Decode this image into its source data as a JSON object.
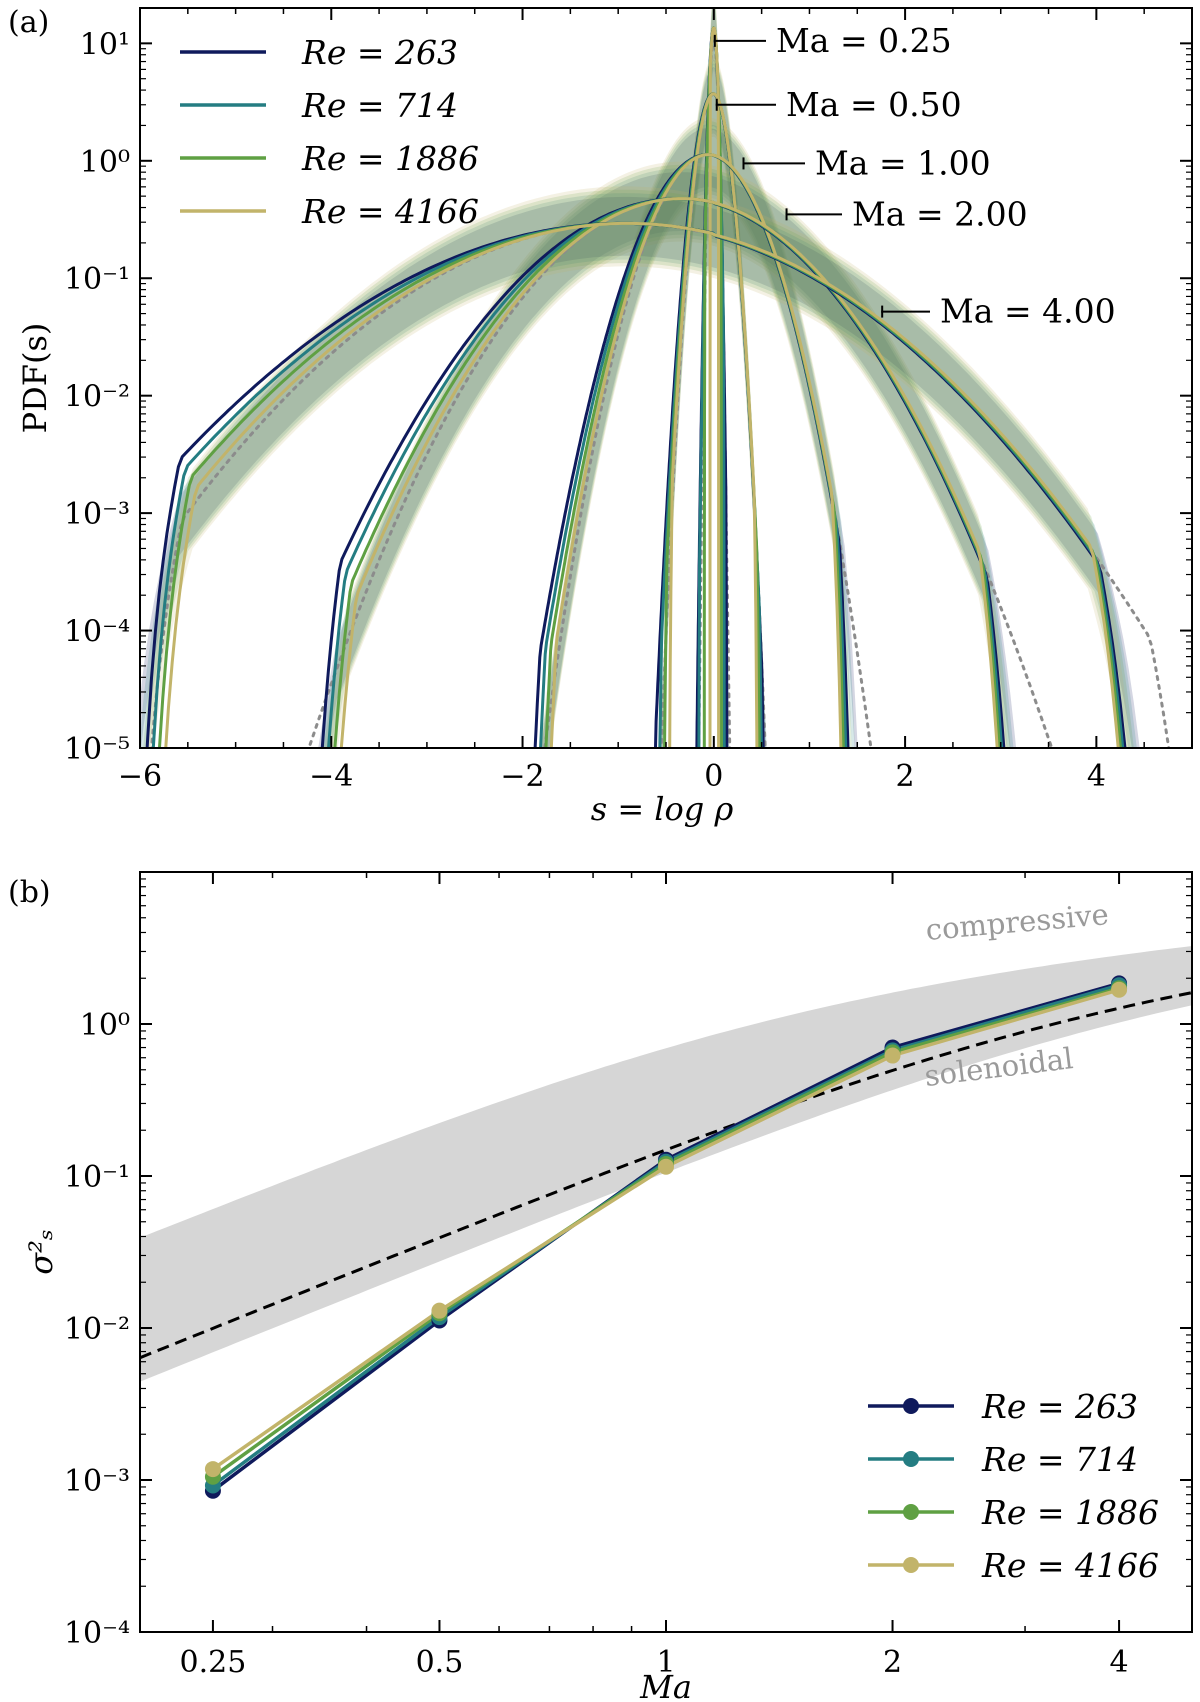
{
  "colors": {
    "re263": "#0f1a5c",
    "re714": "#247d82",
    "re1886": "#5fa043",
    "re4166": "#c2b46a",
    "model": "#8c8c8c",
    "band": "#d6d6d6",
    "dashed": "#000000"
  },
  "chart_data": [
    {
      "panel_label": "(a)",
      "type": "line",
      "xlabel": "s = log ρ",
      "ylabel": "PDF(s)",
      "xlim": [
        -6,
        5
      ],
      "ylim": [
        1e-05,
        20
      ],
      "y_scale": "log",
      "x_ticks": [
        "−6",
        "−4",
        "−2",
        "0",
        "2",
        "4"
      ],
      "y_ticks": [
        "10¹",
        "10⁰",
        "10⁻¹",
        "10⁻²",
        "10⁻³",
        "10⁻⁴",
        "10⁻⁵"
      ],
      "legend": {
        "position": "top-left",
        "entries": [
          "Re = 263",
          "Re = 714",
          "Re = 1886",
          "Re = 4166"
        ]
      },
      "annotations": [
        "Ma = 0.25",
        "Ma = 0.50",
        "Ma = 1.00",
        "Ma = 2.00",
        "Ma = 4.00"
      ],
      "groups": [
        {
          "Ma": 0.25,
          "sigma2": 0.00088,
          "peak": 13.8,
          "left_cut": -0.22,
          "right_cut": 0.14
        },
        {
          "Ma": 0.5,
          "sigma2": 0.0115,
          "peak": 3.8,
          "left_cut": -0.65,
          "right_cut": 0.55
        },
        {
          "Ma": 1.0,
          "sigma2": 0.125,
          "peak": 1.15,
          "left_cut": -1.95,
          "right_cut": 1.45
        },
        {
          "Ma": 2.0,
          "sigma2": 0.7,
          "peak": 0.48,
          "left_cut": -4.2,
          "right_cut": 3.15
        },
        {
          "Ma": 4.0,
          "sigma2": 1.85,
          "peak": 0.3,
          "left_cut": -6.0,
          "right_cut": 4.45
        }
      ],
      "series": [
        {
          "name": "Re = 263",
          "color_key": "re263"
        },
        {
          "name": "Re = 714",
          "color_key": "re714"
        },
        {
          "name": "Re = 1886",
          "color_key": "re1886"
        },
        {
          "name": "Re = 4166",
          "color_key": "re4166"
        }
      ],
      "model_curve": {
        "style": "dotted",
        "color_key": "model"
      }
    },
    {
      "panel_label": "(b)",
      "type": "line",
      "xlabel": "Ma",
      "ylabel": "σ²ₛ",
      "x_scale": "log",
      "y_scale": "log",
      "xlim": [
        0.2,
        5.0
      ],
      "ylim": [
        0.0001,
        10
      ],
      "x_ticks": [
        "0.25",
        "0.5",
        "1",
        "2",
        "4"
      ],
      "x": [
        0.25,
        0.5,
        1,
        2,
        4
      ],
      "y_ticks": [
        "10⁰",
        "10⁻¹",
        "10⁻²",
        "10⁻³",
        "10⁻⁴"
      ],
      "series": [
        {
          "name": "Re = 263",
          "color_key": "re263",
          "values": [
            0.00085,
            0.0112,
            0.128,
            0.7,
            1.85
          ]
        },
        {
          "name": "Re = 714",
          "color_key": "re714",
          "values": [
            0.00092,
            0.0118,
            0.124,
            0.67,
            1.8
          ]
        },
        {
          "name": "Re = 1886",
          "color_key": "re1886",
          "values": [
            0.00105,
            0.0125,
            0.12,
            0.65,
            1.72
          ]
        },
        {
          "name": "Re = 4166",
          "color_key": "re4166",
          "values": [
            0.00118,
            0.013,
            0.115,
            0.62,
            1.68
          ]
        }
      ],
      "band": {
        "label_upper": "compressive",
        "label_lower": "solenoidal"
      },
      "dashed_curve": {
        "style": "dashed",
        "color_key": "dashed"
      },
      "legend": {
        "position": "bottom-right",
        "entries": [
          "Re = 263",
          "Re = 714",
          "Re = 1886",
          "Re = 4166"
        ]
      }
    }
  ]
}
